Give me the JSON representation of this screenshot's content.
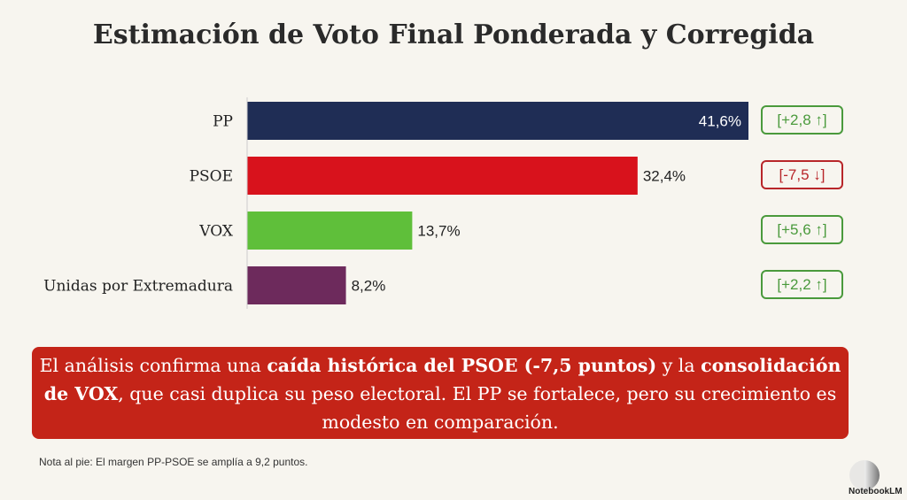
{
  "chart_data": {
    "type": "bar",
    "orientation": "horizontal",
    "title": "Estimación de Voto Final Ponderada y Corregida",
    "categories": [
      "PP",
      "PSOE",
      "VOX",
      "Unidas por Extremadura"
    ],
    "values": [
      41.6,
      32.4,
      13.7,
      8.2
    ],
    "value_labels": [
      "41,6%",
      "32,4%",
      "13,7%",
      "8,2%"
    ],
    "colors": [
      "#1f2d55",
      "#d8121c",
      "#5fbf3a",
      "#6d2a5c"
    ],
    "changes": [
      {
        "text": "[+2,8 ↑]",
        "color": "#4a9a3c"
      },
      {
        "text": "[-7,5 ↓]",
        "color": "#b8262a"
      },
      {
        "text": "[+5,6 ↑]",
        "color": "#4a9a3c"
      },
      {
        "text": "[+2,2 ↑]",
        "color": "#4a9a3c"
      }
    ],
    "xlim": [
      0,
      41.6
    ],
    "grid": false
  },
  "summary": {
    "p1": "El análisis confirma una ",
    "b1": "caída histórica del PSOE (-7,5 puntos)",
    "p2": " y la ",
    "b2": "consolidación de VOX",
    "p3": ", que casi duplica su peso electoral. El PP se fortalece, pero su crecimiento es modesto en comparación."
  },
  "footnote": "Nota al pie: El margen PP-PSOE se amplía a 9,2 puntos.",
  "logo": "NotebookLM"
}
